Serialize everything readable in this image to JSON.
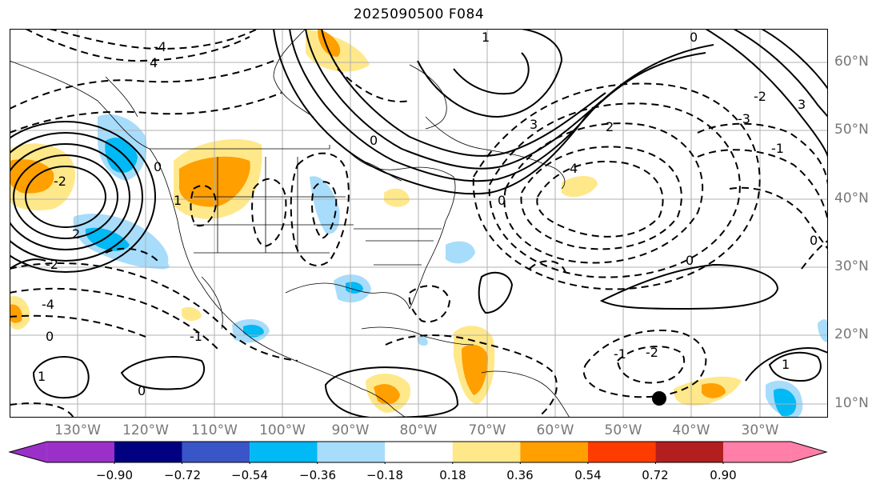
{
  "title": "2025090500 F084",
  "latitude_labels": [
    "60°N",
    "50°N",
    "40°N",
    "30°N",
    "20°N",
    "10°N"
  ],
  "longitude_labels": [
    "130°W",
    "120°W",
    "110°W",
    "100°W",
    "90°W",
    "80°W",
    "70°W",
    "60°W",
    "50°W",
    "40°W",
    "30°W"
  ],
  "colorbar": {
    "levels": [
      "−0.90",
      "−0.72",
      "−0.54",
      "−0.36",
      "−0.18",
      "0.18",
      "0.36",
      "0.54",
      "0.72",
      "0.90"
    ],
    "colors": [
      "#9b30c9",
      "#000080",
      "#3955c7",
      "#00b9f5",
      "#a8dcfb",
      "#ffffff",
      "#ffe88a",
      "#ff9f00",
      "#ff3c00",
      "#b21f1f",
      "#ff7fa8"
    ]
  },
  "map": {
    "projection": "cylindrical",
    "lon_range": [
      -135,
      -15
    ],
    "lat_range": [
      8,
      65
    ],
    "gridlines": true,
    "contour_labels": [
      "4",
      "1",
      "0",
      "3",
      "2",
      "0",
      "-1",
      "-2",
      "-3",
      "-4",
      "3",
      "0",
      "-2",
      "2",
      "0",
      "0",
      "0",
      "-1",
      "-2",
      "0",
      "1",
      "1",
      "0",
      "4",
      "-4",
      "-2",
      "-1",
      "1"
    ],
    "marker": "black-dot"
  }
}
